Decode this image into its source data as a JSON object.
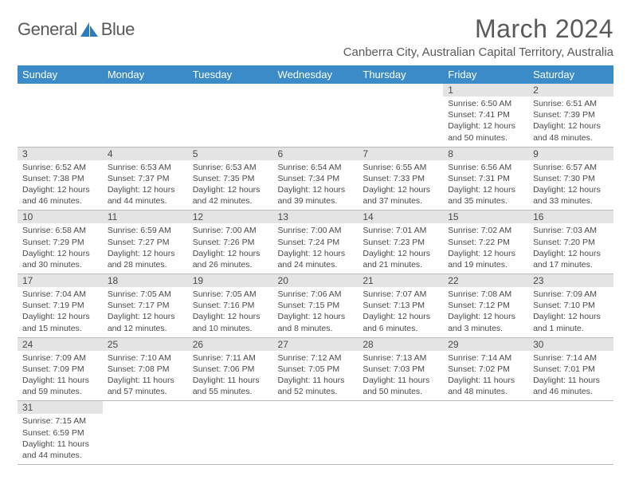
{
  "logo": {
    "text1": "General",
    "text2": "Blue"
  },
  "title": "March 2024",
  "location": "Canberra City, Australian Capital Territory, Australia",
  "colors": {
    "header_bg": "#3b8bc8",
    "header_fg": "#ffffff",
    "daynum_bg": "#e4e4e4",
    "text": "#4a4a4a",
    "logo_text": "#5a5a5a",
    "logo_accent": "#2d7bbf",
    "border": "#b8b8b8"
  },
  "dayNames": [
    "Sunday",
    "Monday",
    "Tuesday",
    "Wednesday",
    "Thursday",
    "Friday",
    "Saturday"
  ],
  "firstWeekday": 5,
  "daysInMonth": 31,
  "days": {
    "1": {
      "sunrise": "6:50 AM",
      "sunset": "7:41 PM",
      "dl1": "12 hours",
      "dl2": "and 50 minutes."
    },
    "2": {
      "sunrise": "6:51 AM",
      "sunset": "7:39 PM",
      "dl1": "12 hours",
      "dl2": "and 48 minutes."
    },
    "3": {
      "sunrise": "6:52 AM",
      "sunset": "7:38 PM",
      "dl1": "12 hours",
      "dl2": "and 46 minutes."
    },
    "4": {
      "sunrise": "6:53 AM",
      "sunset": "7:37 PM",
      "dl1": "12 hours",
      "dl2": "and 44 minutes."
    },
    "5": {
      "sunrise": "6:53 AM",
      "sunset": "7:35 PM",
      "dl1": "12 hours",
      "dl2": "and 42 minutes."
    },
    "6": {
      "sunrise": "6:54 AM",
      "sunset": "7:34 PM",
      "dl1": "12 hours",
      "dl2": "and 39 minutes."
    },
    "7": {
      "sunrise": "6:55 AM",
      "sunset": "7:33 PM",
      "dl1": "12 hours",
      "dl2": "and 37 minutes."
    },
    "8": {
      "sunrise": "6:56 AM",
      "sunset": "7:31 PM",
      "dl1": "12 hours",
      "dl2": "and 35 minutes."
    },
    "9": {
      "sunrise": "6:57 AM",
      "sunset": "7:30 PM",
      "dl1": "12 hours",
      "dl2": "and 33 minutes."
    },
    "10": {
      "sunrise": "6:58 AM",
      "sunset": "7:29 PM",
      "dl1": "12 hours",
      "dl2": "and 30 minutes."
    },
    "11": {
      "sunrise": "6:59 AM",
      "sunset": "7:27 PM",
      "dl1": "12 hours",
      "dl2": "and 28 minutes."
    },
    "12": {
      "sunrise": "7:00 AM",
      "sunset": "7:26 PM",
      "dl1": "12 hours",
      "dl2": "and 26 minutes."
    },
    "13": {
      "sunrise": "7:00 AM",
      "sunset": "7:24 PM",
      "dl1": "12 hours",
      "dl2": "and 24 minutes."
    },
    "14": {
      "sunrise": "7:01 AM",
      "sunset": "7:23 PM",
      "dl1": "12 hours",
      "dl2": "and 21 minutes."
    },
    "15": {
      "sunrise": "7:02 AM",
      "sunset": "7:22 PM",
      "dl1": "12 hours",
      "dl2": "and 19 minutes."
    },
    "16": {
      "sunrise": "7:03 AM",
      "sunset": "7:20 PM",
      "dl1": "12 hours",
      "dl2": "and 17 minutes."
    },
    "17": {
      "sunrise": "7:04 AM",
      "sunset": "7:19 PM",
      "dl1": "12 hours",
      "dl2": "and 15 minutes."
    },
    "18": {
      "sunrise": "7:05 AM",
      "sunset": "7:17 PM",
      "dl1": "12 hours",
      "dl2": "and 12 minutes."
    },
    "19": {
      "sunrise": "7:05 AM",
      "sunset": "7:16 PM",
      "dl1": "12 hours",
      "dl2": "and 10 minutes."
    },
    "20": {
      "sunrise": "7:06 AM",
      "sunset": "7:15 PM",
      "dl1": "12 hours",
      "dl2": "and 8 minutes."
    },
    "21": {
      "sunrise": "7:07 AM",
      "sunset": "7:13 PM",
      "dl1": "12 hours",
      "dl2": "and 6 minutes."
    },
    "22": {
      "sunrise": "7:08 AM",
      "sunset": "7:12 PM",
      "dl1": "12 hours",
      "dl2": "and 3 minutes."
    },
    "23": {
      "sunrise": "7:09 AM",
      "sunset": "7:10 PM",
      "dl1": "12 hours",
      "dl2": "and 1 minute."
    },
    "24": {
      "sunrise": "7:09 AM",
      "sunset": "7:09 PM",
      "dl1": "11 hours",
      "dl2": "and 59 minutes."
    },
    "25": {
      "sunrise": "7:10 AM",
      "sunset": "7:08 PM",
      "dl1": "11 hours",
      "dl2": "and 57 minutes."
    },
    "26": {
      "sunrise": "7:11 AM",
      "sunset": "7:06 PM",
      "dl1": "11 hours",
      "dl2": "and 55 minutes."
    },
    "27": {
      "sunrise": "7:12 AM",
      "sunset": "7:05 PM",
      "dl1": "11 hours",
      "dl2": "and 52 minutes."
    },
    "28": {
      "sunrise": "7:13 AM",
      "sunset": "7:03 PM",
      "dl1": "11 hours",
      "dl2": "and 50 minutes."
    },
    "29": {
      "sunrise": "7:14 AM",
      "sunset": "7:02 PM",
      "dl1": "11 hours",
      "dl2": "and 48 minutes."
    },
    "30": {
      "sunrise": "7:14 AM",
      "sunset": "7:01 PM",
      "dl1": "11 hours",
      "dl2": "and 46 minutes."
    },
    "31": {
      "sunrise": "7:15 AM",
      "sunset": "6:59 PM",
      "dl1": "11 hours",
      "dl2": "and 44 minutes."
    }
  },
  "labels": {
    "sunrise": "Sunrise:",
    "sunset": "Sunset:",
    "daylight": "Daylight:"
  }
}
